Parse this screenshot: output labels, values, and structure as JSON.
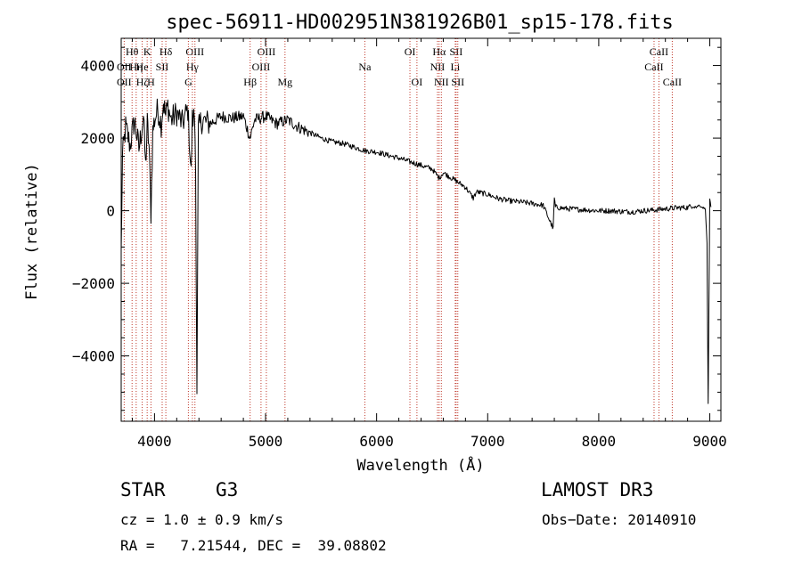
{
  "chart_data": {
    "type": "line",
    "title": "spec-56911-HD002951N381926B01_sp15-178.fits",
    "xlabel": "Wavelength (Å)",
    "ylabel": "Flux (relative)",
    "xlim": [
      3700,
      9100
    ],
    "ylim": [
      -5800,
      4750
    ],
    "xticks": [
      4000,
      5000,
      6000,
      7000,
      8000,
      9000
    ],
    "xtick_labels": [
      "4000",
      "5000",
      "6000",
      "7000",
      "8000",
      "9000"
    ],
    "yticks": [
      -4000,
      -2000,
      0,
      2000,
      4000
    ],
    "ytick_labels": [
      "−4000",
      "−2000",
      "0",
      "2000",
      "4000"
    ],
    "grid": false,
    "series": [
      {
        "name": "flux",
        "color": "#000000",
        "x": [
          3700,
          3712,
          3740,
          3780,
          3820,
          3860,
          3900,
          3920,
          3935,
          3950,
          3968,
          3985,
          4000,
          4030,
          4060,
          4080,
          4101,
          4120,
          4150,
          4200,
          4250,
          4300,
          4330,
          4340,
          4360,
          4370,
          4382,
          4395,
          4420,
          4500,
          4600,
          4700,
          4800,
          4861,
          4900,
          5000,
          5100,
          5200,
          5300,
          5400,
          5500,
          5600,
          5700,
          5800,
          5900,
          6000,
          6100,
          6200,
          6300,
          6400,
          6500,
          6563,
          6600,
          6700,
          6800,
          6870,
          6900,
          7000,
          7100,
          7200,
          7300,
          7400,
          7500,
          7590,
          7600,
          7610,
          7700,
          7800,
          7900,
          8000,
          8100,
          8200,
          8300,
          8400,
          8500,
          8600,
          8700,
          8800,
          8850,
          8880,
          8900,
          8930,
          8960,
          8975,
          8985,
          9000,
          9010
        ],
        "values": [
          -1200,
          1500,
          2300,
          1800,
          2500,
          1700,
          2600,
          1200,
          2400,
          1800,
          -50,
          2200,
          2500,
          2800,
          2400,
          3000,
          2600,
          2900,
          2500,
          2700,
          2400,
          2800,
          1000,
          2500,
          2600,
          1500,
          -5200,
          2200,
          2500,
          2400,
          2600,
          2550,
          2600,
          2000,
          2500,
          2600,
          2400,
          2500,
          2300,
          2150,
          2000,
          1900,
          1850,
          1750,
          1650,
          1620,
          1530,
          1450,
          1350,
          1250,
          1150,
          900,
          1050,
          850,
          650,
          350,
          520,
          450,
          330,
          270,
          240,
          200,
          150,
          -500,
          350,
          100,
          60,
          40,
          20,
          0,
          0,
          -20,
          -30,
          0,
          20,
          50,
          80,
          90,
          150,
          100,
          150,
          100,
          50,
          -900,
          -5300,
          300,
          100
        ]
      }
    ],
    "line_markers": [
      {
        "label": "Hθ",
        "x": 3798,
        "row": 0
      },
      {
        "label": "OII",
        "x": 3727,
        "row": 1
      },
      {
        "label": "OII",
        "x": 3727,
        "row": 2
      },
      {
        "label": "Hη",
        "x": 3835,
        "row": 1
      },
      {
        "label": "He",
        "x": 3889,
        "row": 1
      },
      {
        "label": "K",
        "x": 3934,
        "row": 0
      },
      {
        "label": "Hζ",
        "x": 3889,
        "row": 2
      },
      {
        "label": "SII",
        "x": 4069,
        "row": 1
      },
      {
        "label": "H",
        "x": 3968,
        "row": 2
      },
      {
        "label": "Hδ",
        "x": 4102,
        "row": 0
      },
      {
        "label": "OIII",
        "x": 4364,
        "row": 0
      },
      {
        "label": "Hγ",
        "x": 4341,
        "row": 1
      },
      {
        "label": "G",
        "x": 4305,
        "row": 2
      },
      {
        "label": "OIII",
        "x": 5007,
        "row": 0
      },
      {
        "label": "OIII",
        "x": 4959,
        "row": 1
      },
      {
        "label": "Hβ",
        "x": 4861,
        "row": 2
      },
      {
        "label": "Mg",
        "x": 5175,
        "row": 2
      },
      {
        "label": "Na",
        "x": 5894,
        "row": 1
      },
      {
        "label": "OI",
        "x": 6300,
        "row": 0
      },
      {
        "label": "OI",
        "x": 6363,
        "row": 2
      },
      {
        "label": "Hα",
        "x": 6563,
        "row": 0
      },
      {
        "label": "SII",
        "x": 6716,
        "row": 0
      },
      {
        "label": "NII",
        "x": 6548,
        "row": 1
      },
      {
        "label": "Li",
        "x": 6708,
        "row": 1
      },
      {
        "label": "NII",
        "x": 6583,
        "row": 2
      },
      {
        "label": "SII",
        "x": 6731,
        "row": 2
      },
      {
        "label": "CaII",
        "x": 8542,
        "row": 0
      },
      {
        "label": "CaII",
        "x": 8498,
        "row": 1
      },
      {
        "label": "CaII",
        "x": 8662,
        "row": 2
      }
    ]
  },
  "info": {
    "object_type": "STAR",
    "subclass": "G3",
    "survey": "LAMOST DR3",
    "redshift_line": "cz = 1.0 ± 0.9 km/s",
    "obs_date_line": "Obs−Date: 20140910",
    "coords_line": "RA =   7.21544, DEC =  39.08802"
  }
}
